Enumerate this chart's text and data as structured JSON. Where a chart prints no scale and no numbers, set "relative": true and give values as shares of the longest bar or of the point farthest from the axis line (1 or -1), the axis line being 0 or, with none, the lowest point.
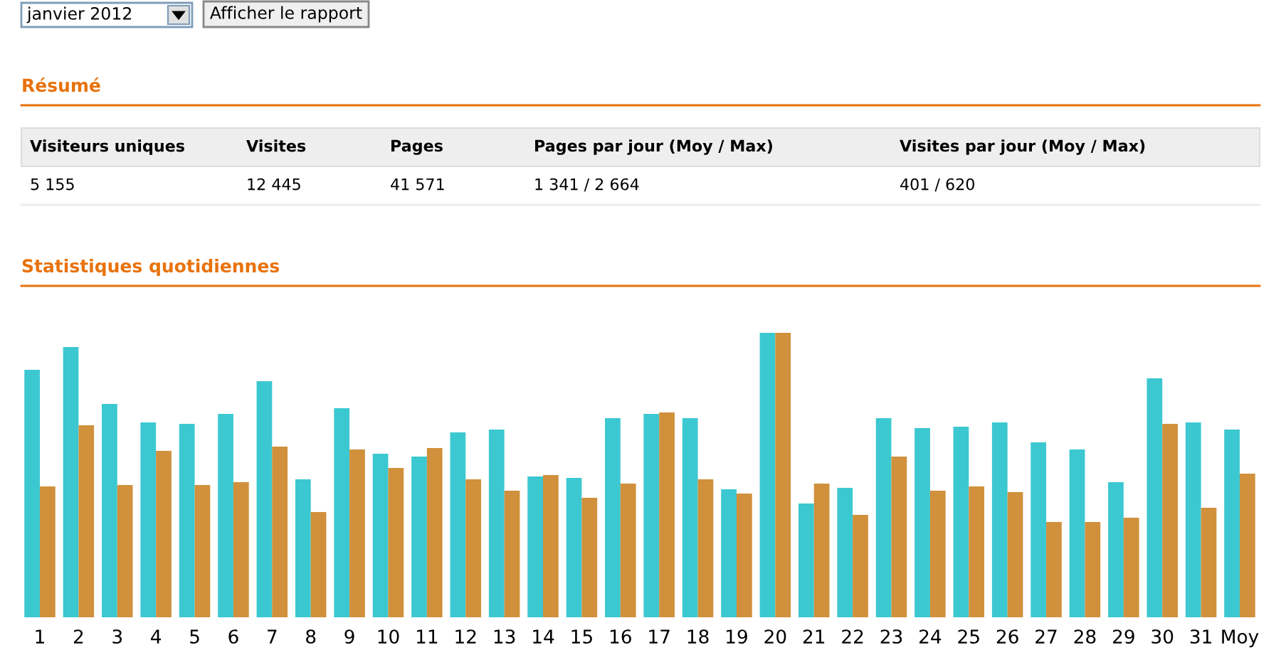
{
  "chart_data": [
    {
      "type": "other",
      "title": "Résumé",
      "annotations": [
        "janvier 2012",
        "Afficher le rapport",
        "Visiteurs uniques",
        "Visites",
        "Pages",
        "Pages par jour (Moy / Max)",
        "Visites par jour (Moy / Max)",
        "5 155",
        "12 445",
        "41 571",
        "1 341 / 2 664",
        "401 / 620"
      ]
    },
    {
      "type": "bar",
      "title": "Statistiques quotidiennes",
      "relative": true,
      "categories": [
        "1",
        "2",
        "3",
        "4",
        "5",
        "6",
        "7",
        "8",
        "9",
        "10",
        "11",
        "12",
        "13",
        "14",
        "15",
        "16",
        "17",
        "18",
        "19",
        "20",
        "21",
        "22",
        "23",
        "24",
        "25",
        "26",
        "27",
        "28",
        "29",
        "30",
        "31",
        "Moy"
      ],
      "series": [
        {
          "color": "#3cc8d0",
          "values": [
            0.87,
            0.95,
            0.75,
            0.685,
            0.68,
            0.715,
            0.83,
            0.485,
            0.735,
            0.575,
            0.565,
            0.65,
            0.66,
            0.495,
            0.49,
            0.7,
            0.715,
            0.7,
            0.45,
            1,
            0.4,
            0.455,
            0.7,
            0.665,
            0.67,
            0.685,
            0.615,
            0.59,
            0.475,
            0.84,
            0.685,
            0.66
          ]
        },
        {
          "color": "#d0903c",
          "values": [
            0.46,
            0.675,
            0.465,
            0.585,
            0.465,
            0.475,
            0.6,
            0.37,
            0.59,
            0.525,
            0.595,
            0.485,
            0.445,
            0.5,
            0.42,
            0.47,
            0.72,
            0.485,
            0.435,
            1,
            0.47,
            0.36,
            0.565,
            0.445,
            0.46,
            0.44,
            0.335,
            0.335,
            0.35,
            0.68,
            0.385,
            0.505
          ]
        }
      ]
    }
  ]
}
